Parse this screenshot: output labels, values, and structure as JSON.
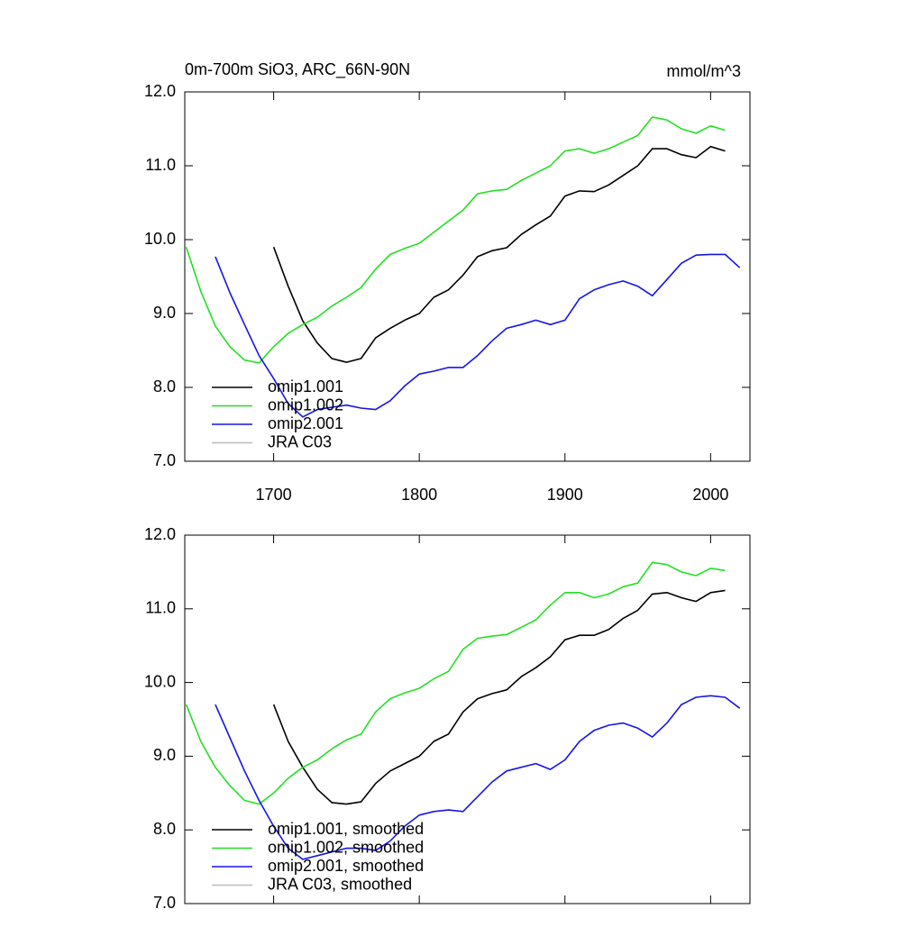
{
  "chart_data": [
    {
      "type": "line",
      "title": "0m-700m SiO3, ARC_66N-90N",
      "y_units": "mmol/m^3",
      "x": [
        1640,
        1650,
        1660,
        1670,
        1680,
        1690,
        1700,
        1710,
        1720,
        1730,
        1740,
        1750,
        1760,
        1770,
        1780,
        1790,
        1800,
        1810,
        1820,
        1830,
        1840,
        1850,
        1860,
        1870,
        1880,
        1890,
        1900,
        1910,
        1920,
        1930,
        1940,
        1950,
        1960,
        1970,
        1980,
        1990,
        2000,
        2010,
        2020
      ],
      "series": [
        {
          "name": "omip1.001",
          "color": "#000000",
          "values": [
            null,
            null,
            null,
            null,
            null,
            null,
            9.9,
            9.37,
            8.9,
            8.6,
            8.39,
            8.34,
            8.39,
            8.67,
            8.8,
            8.91,
            9.0,
            9.22,
            9.32,
            9.52,
            9.77,
            9.85,
            9.89,
            10.07,
            10.2,
            10.32,
            10.59,
            10.66,
            10.65,
            10.74,
            10.87,
            11.0,
            11.23,
            11.23,
            11.15,
            11.11,
            11.26,
            11.2,
            null
          ]
        },
        {
          "name": "omip1.002",
          "color": "#22e022",
          "values": [
            9.9,
            9.3,
            8.83,
            8.55,
            8.37,
            8.33,
            8.55,
            8.73,
            8.85,
            8.95,
            9.1,
            9.22,
            9.35,
            9.6,
            9.8,
            9.88,
            9.95,
            10.1,
            10.25,
            10.4,
            10.62,
            10.66,
            10.68,
            10.8,
            10.9,
            11.0,
            11.2,
            11.23,
            11.17,
            11.23,
            11.32,
            11.41,
            11.66,
            11.62,
            11.5,
            11.44,
            11.54,
            11.48,
            null
          ]
        },
        {
          "name": "omip2.001",
          "color": "#1515e6",
          "values": [
            null,
            null,
            9.77,
            9.28,
            8.85,
            8.43,
            8.12,
            7.78,
            7.6,
            7.7,
            7.73,
            7.76,
            7.72,
            7.7,
            7.82,
            8.02,
            8.18,
            8.22,
            8.27,
            8.27,
            8.43,
            8.63,
            8.8,
            8.85,
            8.91,
            8.85,
            8.91,
            9.2,
            9.32,
            9.39,
            9.44,
            9.37,
            9.24,
            9.46,
            9.68,
            9.79,
            9.8,
            9.8,
            9.62
          ]
        },
        {
          "name": "JRA C03",
          "color": "#bbbbbb",
          "values": [
            null,
            null,
            null,
            null,
            null,
            null,
            null,
            null,
            null,
            null,
            null,
            null,
            null,
            null,
            null,
            null,
            null,
            null,
            null,
            null,
            null,
            null,
            null,
            null,
            null,
            null,
            null,
            null,
            null,
            null,
            null,
            null,
            null,
            null,
            null,
            null,
            null,
            null,
            null
          ]
        }
      ],
      "xlim": [
        1639,
        2027
      ],
      "xticks": [
        1700,
        1800,
        1900,
        2000
      ],
      "xtick_labels": true,
      "ylim": [
        7,
        12
      ],
      "yticks": [
        {
          "value": 7,
          "label": "7.0"
        },
        {
          "value": 8,
          "label": "8.0"
        },
        {
          "value": 9,
          "label": "9.0"
        },
        {
          "value": 10,
          "label": "10.0"
        },
        {
          "value": 11,
          "label": "11.0"
        },
        {
          "value": 12,
          "label": "12.0"
        }
      ],
      "legend": "lower left"
    },
    {
      "type": "line",
      "x": [
        1640,
        1650,
        1660,
        1670,
        1680,
        1690,
        1700,
        1710,
        1720,
        1730,
        1740,
        1750,
        1760,
        1770,
        1780,
        1790,
        1800,
        1810,
        1820,
        1830,
        1840,
        1850,
        1860,
        1870,
        1880,
        1890,
        1900,
        1910,
        1920,
        1930,
        1940,
        1950,
        1960,
        1970,
        1980,
        1990,
        2000,
        2010,
        2020
      ],
      "series": [
        {
          "name": "omip1.001, smoothed",
          "color": "#000000",
          "values": [
            null,
            null,
            null,
            null,
            null,
            null,
            9.7,
            9.2,
            8.85,
            8.55,
            8.37,
            8.35,
            8.38,
            8.63,
            8.8,
            8.9,
            9.0,
            9.2,
            9.3,
            9.6,
            9.78,
            9.85,
            9.9,
            10.08,
            10.2,
            10.35,
            10.58,
            10.64,
            10.64,
            10.72,
            10.87,
            10.98,
            11.2,
            11.22,
            11.15,
            11.1,
            11.22,
            11.25,
            null
          ]
        },
        {
          "name": "omip1.002, smoothed",
          "color": "#22e022",
          "values": [
            9.7,
            9.2,
            8.85,
            8.6,
            8.4,
            8.35,
            8.5,
            8.7,
            8.85,
            8.95,
            9.1,
            9.22,
            9.3,
            9.6,
            9.78,
            9.86,
            9.92,
            10.05,
            10.15,
            10.45,
            10.6,
            10.63,
            10.65,
            10.75,
            10.85,
            11.05,
            11.22,
            11.22,
            11.15,
            11.2,
            11.3,
            11.35,
            11.63,
            11.6,
            11.5,
            11.45,
            11.55,
            11.52,
            null
          ]
        },
        {
          "name": "omip2.001, smoothed",
          "color": "#1515e6",
          "values": [
            null,
            null,
            9.7,
            9.25,
            8.8,
            8.4,
            8.05,
            7.75,
            7.6,
            7.65,
            7.7,
            7.75,
            7.75,
            7.72,
            7.85,
            8.05,
            8.2,
            8.25,
            8.27,
            8.25,
            8.45,
            8.65,
            8.8,
            8.85,
            8.9,
            8.82,
            8.95,
            9.2,
            9.35,
            9.42,
            9.45,
            9.38,
            9.26,
            9.45,
            9.7,
            9.8,
            9.82,
            9.8,
            9.65
          ]
        },
        {
          "name": "JRA C03, smoothed",
          "color": "#bbbbbb",
          "values": [
            null,
            null,
            null,
            null,
            null,
            null,
            null,
            null,
            null,
            null,
            null,
            null,
            null,
            null,
            null,
            null,
            null,
            null,
            null,
            null,
            null,
            null,
            null,
            null,
            null,
            null,
            null,
            null,
            null,
            null,
            null,
            null,
            null,
            null,
            null,
            null,
            null,
            null,
            null
          ]
        }
      ],
      "xlim": [
        1639,
        2027
      ],
      "xticks": [
        1700,
        1800,
        1900,
        2000
      ],
      "xtick_labels": false,
      "ylim": [
        7,
        12
      ],
      "yticks": [
        {
          "value": 7,
          "label": "7.0"
        },
        {
          "value": 8,
          "label": "8.0"
        },
        {
          "value": 9,
          "label": "9.0"
        },
        {
          "value": 10,
          "label": "10.0"
        },
        {
          "value": 11,
          "label": "11.0"
        },
        {
          "value": 12,
          "label": "12.0"
        }
      ],
      "legend": "lower left"
    }
  ]
}
